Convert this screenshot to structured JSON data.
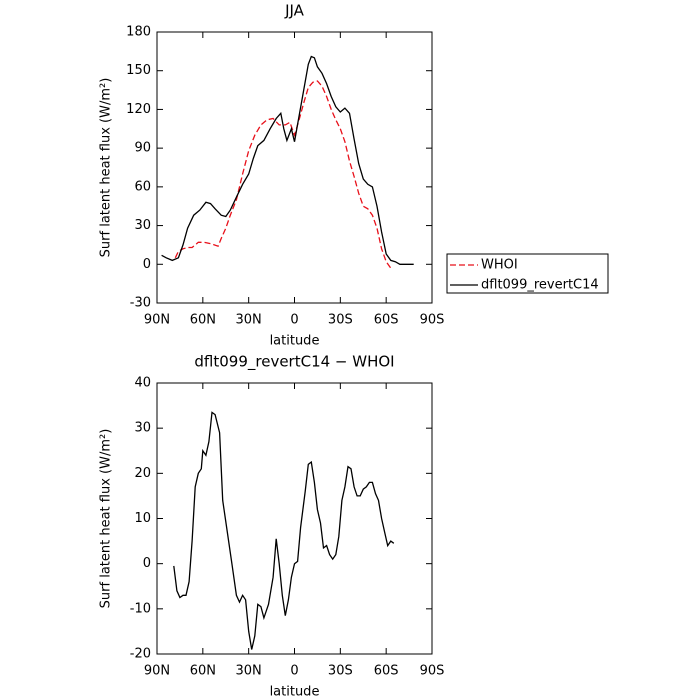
{
  "chart_data": [
    {
      "type": "line",
      "title": "JJA",
      "xlabel": "latitude",
      "ylabel": "Surf latent heat flux (W/m²)",
      "xlim": [
        90,
        -90
      ],
      "xticks": [
        {
          "value": 90,
          "label": "90N"
        },
        {
          "value": 60,
          "label": "60N"
        },
        {
          "value": 30,
          "label": "30N"
        },
        0,
        {
          "value": -30,
          "label": "30S"
        },
        {
          "value": -60,
          "label": "60S"
        },
        {
          "value": -90,
          "label": "90S"
        }
      ],
      "ylim": [
        -30,
        180
      ],
      "yticks": [
        -30,
        0,
        30,
        60,
        90,
        120,
        150,
        180
      ],
      "series": [
        {
          "name": "WHOI",
          "color": "#e8101a",
          "linestyle": "dashed",
          "x": [
            78,
            76,
            73,
            70,
            67,
            63,
            59,
            55,
            50,
            48,
            45,
            42,
            38,
            34,
            30,
            26,
            22,
            18,
            14,
            10,
            6,
            3,
            0,
            -3,
            -6,
            -9,
            -12,
            -15,
            -18,
            -21,
            -24,
            -27,
            -30,
            -33,
            -36,
            -39,
            -42,
            -45,
            -48,
            -51,
            -54,
            -57,
            -60,
            -63
          ],
          "values": [
            5,
            10,
            12,
            13,
            13,
            17,
            17,
            16,
            14,
            20,
            28,
            38,
            50,
            70,
            88,
            100,
            108,
            112,
            113,
            108,
            108,
            110,
            100,
            112,
            125,
            137,
            141,
            142,
            138,
            130,
            120,
            112,
            105,
            95,
            80,
            68,
            55,
            45,
            43,
            38,
            28,
            12,
            2,
            -3
          ]
        },
        {
          "name": "dflt099_revertC14",
          "color": "#000000",
          "linestyle": "solid",
          "x": [
            87,
            84,
            80,
            76,
            73,
            70,
            66,
            62,
            58,
            55,
            52,
            48,
            45,
            42,
            38,
            34,
            30,
            27,
            24,
            20,
            16,
            12,
            9,
            7,
            5,
            2,
            0,
            -3,
            -6,
            -9,
            -11,
            -13,
            -15,
            -18,
            -21,
            -24,
            -27,
            -30,
            -33,
            -36,
            -39,
            -42,
            -45,
            -48,
            -51,
            -54,
            -57,
            -60,
            -63,
            -66,
            -69,
            -72,
            -75,
            -78
          ],
          "values": [
            7,
            5,
            3,
            5,
            15,
            28,
            38,
            42,
            48,
            47,
            43,
            38,
            37,
            42,
            52,
            62,
            70,
            82,
            92,
            96,
            105,
            113,
            117,
            105,
            96,
            105,
            95,
            115,
            135,
            155,
            161,
            160,
            153,
            148,
            140,
            130,
            122,
            118,
            121,
            117,
            97,
            78,
            66,
            62,
            60,
            45,
            25,
            8,
            3,
            2,
            0,
            0,
            0,
            0
          ]
        }
      ]
    },
    {
      "type": "line",
      "title": "dflt099_revertC14 − WHOI",
      "xlabel": "latitude",
      "ylabel": "Surf latent heat flux (W/m²)",
      "xlim": [
        90,
        -90
      ],
      "xticks": [
        {
          "value": 90,
          "label": "90N"
        },
        {
          "value": 60,
          "label": "60N"
        },
        {
          "value": 30,
          "label": "30N"
        },
        0,
        {
          "value": -30,
          "label": "30S"
        },
        {
          "value": -60,
          "label": "60S"
        },
        {
          "value": -90,
          "label": "90S"
        }
      ],
      "ylim": [
        -20,
        40
      ],
      "yticks": [
        -20,
        -10,
        0,
        10,
        20,
        30,
        40
      ],
      "series": [
        {
          "color": "#000000",
          "linestyle": "solid",
          "x": [
            79,
            77,
            75,
            73,
            71,
            69,
            67,
            65,
            63,
            61,
            60,
            58,
            56,
            54,
            52,
            49,
            47,
            44,
            41,
            38,
            36,
            34,
            32,
            30,
            28,
            26,
            24,
            22,
            20,
            17,
            14,
            12,
            10,
            8,
            6,
            4,
            2,
            0,
            -2,
            -4,
            -7,
            -9,
            -11,
            -13,
            -15,
            -17,
            -19,
            -21,
            -23,
            -25,
            -27,
            -29,
            -31,
            -33,
            -35,
            -37,
            -39,
            -41,
            -43,
            -45,
            -47,
            -49,
            -51,
            -53,
            -55,
            -57,
            -59,
            -61,
            -63,
            -65
          ],
          "values": [
            -0.5,
            -6,
            -7.5,
            -7,
            -7,
            -4,
            5,
            17,
            20,
            21,
            25,
            24,
            27,
            33.5,
            33,
            29,
            14,
            7,
            0,
            -7,
            -8.5,
            -7,
            -8,
            -15,
            -19,
            -16,
            -9,
            -9.5,
            -12,
            -9,
            -3,
            5.5,
            0,
            -7,
            -11.5,
            -8,
            -3,
            0,
            0.5,
            8,
            16,
            22,
            22.5,
            18,
            12,
            9,
            3.5,
            4,
            2,
            1,
            2,
            6,
            14,
            17,
            21.5,
            21,
            17,
            15,
            15,
            16.5,
            17,
            18,
            18,
            15.5,
            14,
            10,
            7,
            4,
            5,
            4.5
          ]
        }
      ]
    }
  ]
}
